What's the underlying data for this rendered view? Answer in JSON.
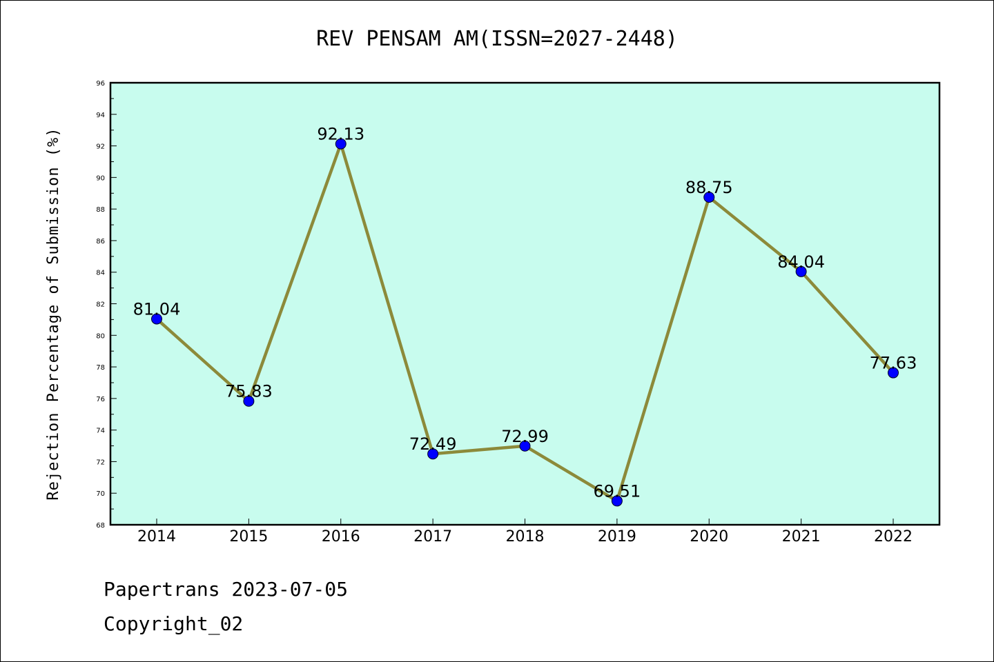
{
  "chart_data": {
    "type": "line",
    "title": "REV PENSAM AM(ISSN=2027-2448)",
    "xlabel": "",
    "ylabel": "Rejection Percentage of Submission (%)",
    "categories": [
      "2014",
      "2015",
      "2016",
      "2017",
      "2018",
      "2019",
      "2020",
      "2021",
      "2022"
    ],
    "series": [
      {
        "values": [
          81.04,
          75.83,
          92.13,
          72.49,
          72.99,
          69.51,
          88.75,
          84.04,
          77.63
        ],
        "labels": [
          "81.04",
          "75.83",
          "92.13",
          "72.49",
          "72.99",
          "69.51",
          "88.75",
          "84.04",
          "77.63"
        ]
      }
    ],
    "ylim": [
      68,
      96
    ],
    "yticks": [
      68,
      70,
      72,
      74,
      76,
      78,
      80,
      82,
      84,
      86,
      88,
      90,
      92,
      94,
      96
    ],
    "grid": false,
    "legend": "none",
    "colors": {
      "plot_background": "#c8fcee",
      "line": "#8c8a3a",
      "marker": "#0000ff"
    }
  },
  "footer": {
    "line1": "Papertrans 2023-07-05",
    "line2": "Copyright_02"
  }
}
